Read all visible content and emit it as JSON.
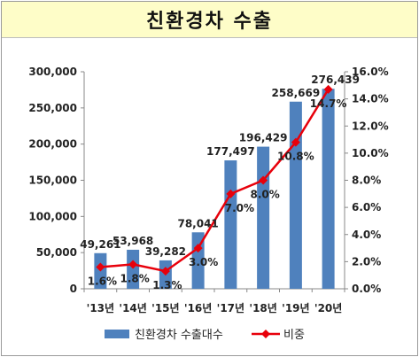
{
  "header": {
    "title": "친환경차 수출"
  },
  "colors": {
    "title_background": "#fefdc8",
    "bar": "#4f81bd",
    "line": "#e8000b"
  },
  "chart_data": {
    "type": "bar",
    "categories": [
      "'13년",
      "'14년",
      "'15년",
      "'16년",
      "'17년",
      "'18년",
      "'19년",
      "'20년"
    ],
    "series": [
      {
        "name": "친환경차 수출대수",
        "type": "bar",
        "axis": "left",
        "values": [
          49261,
          53968,
          39282,
          78041,
          177497,
          196429,
          258669,
          276439
        ],
        "labels": [
          "49,261",
          "53,968",
          "39,282",
          "78,041",
          "177,497",
          "196,429",
          "258,669",
          "276,439"
        ]
      },
      {
        "name": "비중",
        "type": "line",
        "axis": "right",
        "values": [
          1.6,
          1.8,
          1.3,
          3.0,
          7.0,
          8.0,
          10.8,
          14.7
        ],
        "labels": [
          "1.6%",
          "1.8%",
          "1.3%",
          "3.0%",
          "7.0%",
          "8.0%",
          "10.8%",
          "14.7%"
        ]
      }
    ],
    "y_left": {
      "ylim": [
        0,
        300000
      ],
      "ticks": [
        0,
        50000,
        100000,
        150000,
        200000,
        250000,
        300000
      ],
      "tick_labels": [
        "0",
        "50,000",
        "100,000",
        "150,000",
        "200,000",
        "250,000",
        "300,000"
      ]
    },
    "y_right": {
      "ylim": [
        0,
        16
      ],
      "ticks": [
        0,
        2,
        4,
        6,
        8,
        10,
        12,
        14,
        16
      ],
      "tick_labels": [
        "0.0%",
        "2.0%",
        "4.0%",
        "6.0%",
        "8.0%",
        "10.0%",
        "12.0%",
        "14.0%",
        "16.0%"
      ]
    },
    "grid": false,
    "legend_position": "bottom"
  }
}
